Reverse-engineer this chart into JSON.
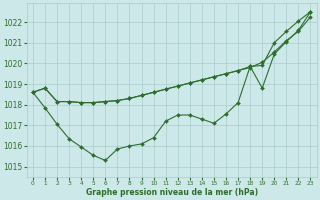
{
  "xlabel": "Graphe pression niveau de la mer (hPa)",
  "background_color": "#cce8e8",
  "grid_color": "#aacccc",
  "line_color": "#2d6e2d",
  "text_color": "#2d6e2d",
  "ylim": [
    1014.5,
    1022.9
  ],
  "xlim": [
    -0.5,
    23.5
  ],
  "yticks": [
    1015,
    1016,
    1017,
    1018,
    1019,
    1020,
    1021,
    1022
  ],
  "xticks": [
    0,
    1,
    2,
    3,
    4,
    5,
    6,
    7,
    8,
    9,
    10,
    11,
    12,
    13,
    14,
    15,
    16,
    17,
    18,
    19,
    20,
    21,
    22,
    23
  ],
  "line1": [
    1018.6,
    1018.8,
    1018.15,
    1018.15,
    1018.1,
    1018.1,
    1018.15,
    1018.2,
    1018.3,
    1018.45,
    1018.6,
    1018.75,
    1018.9,
    1019.05,
    1019.2,
    1019.35,
    1019.5,
    1019.65,
    1019.8,
    1020.05,
    1020.55,
    1021.1,
    1021.55,
    1022.25
  ],
  "line2": [
    1018.6,
    1018.8,
    1018.15,
    1018.15,
    1018.1,
    1018.1,
    1018.15,
    1018.2,
    1018.3,
    1018.45,
    1018.6,
    1018.75,
    1018.9,
    1019.05,
    1019.2,
    1019.35,
    1019.5,
    1019.65,
    1019.85,
    1019.9,
    1021.0,
    1021.55,
    1022.05,
    1022.5
  ],
  "line3": [
    1018.6,
    1017.85,
    1017.05,
    1016.35,
    1015.95,
    1015.55,
    1015.3,
    1015.85,
    1016.0,
    1016.1,
    1016.4,
    1017.2,
    1017.5,
    1017.5,
    1017.3,
    1017.1,
    1017.55,
    1018.1,
    1019.85,
    1018.8,
    1020.45,
    1021.05,
    1021.6,
    1022.5
  ]
}
